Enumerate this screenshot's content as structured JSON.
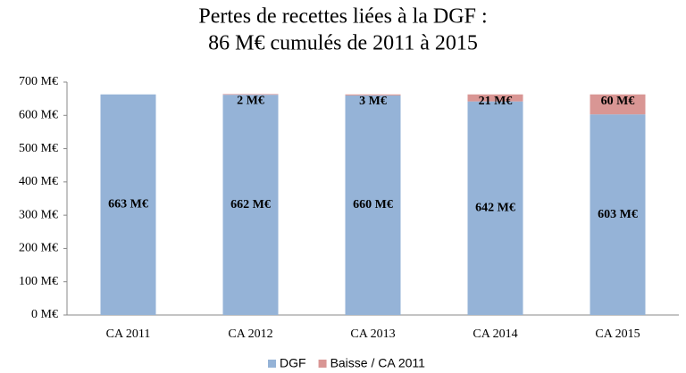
{
  "chart_data": {
    "type": "stacked_bar",
    "title": [
      "Pertes de recettes liées à la DGF :",
      "86 M€ cumulés de 2011 à 2015"
    ],
    "categories": [
      "CA 2011",
      "CA 2012",
      "CA 2013",
      "CA 2014",
      "CA 2015"
    ],
    "series": [
      {
        "name": "DGF",
        "color": "#95b3d7",
        "values": [
          663,
          662,
          660,
          642,
          603
        ],
        "value_labels": [
          "663 M€",
          "662 M€",
          "660 M€",
          "642 M€",
          "603 M€"
        ]
      },
      {
        "name": "Baisse  / CA 2011",
        "color": "#d99694",
        "values": [
          null,
          2,
          3,
          21,
          60
        ],
        "value_labels": [
          null,
          "2 M€",
          "3 M€",
          "21 M€",
          "60 M€"
        ]
      }
    ],
    "ylim": [
      0,
      700
    ],
    "yticks": [
      {
        "value": 0,
        "label": "0 M€"
      },
      {
        "value": 100,
        "label": "100 M€"
      },
      {
        "value": 200,
        "label": "200 M€"
      },
      {
        "value": 300,
        "label": "300 M€"
      },
      {
        "value": 400,
        "label": "400 M€"
      },
      {
        "value": 500,
        "label": "500 M€"
      },
      {
        "value": 600,
        "label": "600 M€"
      },
      {
        "value": 700,
        "label": "700 M€"
      }
    ],
    "legend": "bottom"
  }
}
